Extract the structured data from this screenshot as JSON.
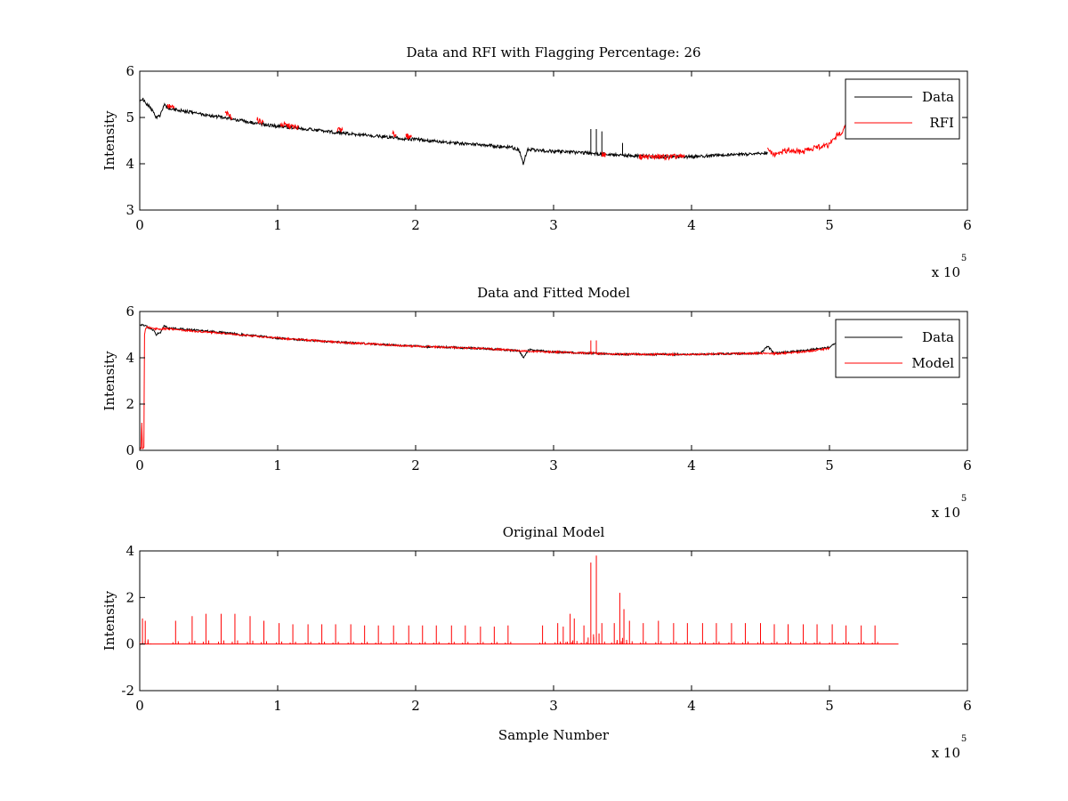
{
  "figure": {
    "background": "#ffffff"
  },
  "chart_data": [
    {
      "type": "line",
      "title": "Data and RFI with Flagging Percentage: 26",
      "xlabel": "",
      "ylabel": "Intensity",
      "xlim": [
        0,
        6
      ],
      "ylim": [
        3,
        6
      ],
      "xticks": [
        0,
        1,
        2,
        3,
        4,
        5,
        6
      ],
      "yticks": [
        3,
        4,
        5,
        6
      ],
      "x_multiplier": {
        "base": "x 10",
        "exponent": "5"
      },
      "grid": false,
      "legend": {
        "position": "top-right",
        "entries": [
          {
            "label": "Data",
            "color": "#000000"
          },
          {
            "label": "RFI",
            "color": "#ff0000"
          }
        ]
      },
      "series": [
        {
          "name": "Data",
          "color": "#000000",
          "x": [
            0,
            0.02,
            0.05,
            0.08,
            0.1,
            0.12,
            0.15,
            0.18,
            0.2,
            0.3,
            0.5,
            0.7,
            0.9,
            1.1,
            1.3,
            1.5,
            1.7,
            1.9,
            2.1,
            2.3,
            2.5,
            2.7,
            2.75,
            2.78,
            2.81,
            2.85,
            2.9,
            3.0,
            3.2,
            3.4,
            3.6,
            3.8,
            4.0,
            4.2,
            4.4,
            4.5,
            4.55
          ],
          "y": [
            5.35,
            5.4,
            5.3,
            5.2,
            5.1,
            5.0,
            5.05,
            5.3,
            5.2,
            5.15,
            5.05,
            4.95,
            4.85,
            4.78,
            4.72,
            4.65,
            4.6,
            4.55,
            4.5,
            4.45,
            4.4,
            4.35,
            4.3,
            4.0,
            4.3,
            4.3,
            4.28,
            4.27,
            4.24,
            4.2,
            4.17,
            4.15,
            4.15,
            4.18,
            4.2,
            4.22,
            4.25
          ],
          "spikes": [
            {
              "x": 3.27,
              "y": 4.75
            },
            {
              "x": 3.31,
              "y": 4.75
            },
            {
              "x": 3.35,
              "y": 4.7
            },
            {
              "x": 3.5,
              "y": 4.45
            }
          ]
        },
        {
          "name": "RFI",
          "color": "#ff0000",
          "segments": [
            {
              "x": [
                0.2,
                0.25
              ],
              "y": [
                5.25,
                5.2
              ]
            },
            {
              "x": [
                0.62,
                0.67
              ],
              "y": [
                5.1,
                5.0
              ]
            },
            {
              "x": [
                0.85,
                0.9
              ],
              "y": [
                4.95,
                4.9
              ]
            },
            {
              "x": [
                1.02,
                1.15
              ],
              "y": [
                4.85,
                4.78
              ]
            },
            {
              "x": [
                1.43,
                1.47
              ],
              "y": [
                4.75,
                4.72
              ]
            },
            {
              "x": [
                1.83,
                1.86
              ],
              "y": [
                4.65,
                4.62
              ]
            },
            {
              "x": [
                1.93,
                1.97
              ],
              "y": [
                4.6,
                4.58
              ]
            },
            {
              "x": [
                3.35,
                3.38
              ],
              "y": [
                4.2,
                4.2
              ]
            },
            {
              "x": [
                3.62,
                3.95
              ],
              "y": [
                4.15,
                4.15
              ]
            },
            {
              "x": [
                4.55,
                4.6,
                4.7,
                4.8,
                4.9,
                5.0,
                5.05,
                5.1,
                5.15
              ],
              "y": [
                4.3,
                4.2,
                4.3,
                4.25,
                4.35,
                4.4,
                4.6,
                4.7,
                5.0
              ]
            }
          ]
        }
      ]
    },
    {
      "type": "line",
      "title": "Data and Fitted Model",
      "xlabel": "",
      "ylabel": "Intensity",
      "xlim": [
        0,
        6
      ],
      "ylim": [
        0,
        6
      ],
      "xticks": [
        0,
        1,
        2,
        3,
        4,
        5,
        6
      ],
      "yticks": [
        0,
        2,
        4,
        6
      ],
      "x_multiplier": {
        "base": "x 10",
        "exponent": "5"
      },
      "grid": false,
      "legend": {
        "position": "top-right",
        "entries": [
          {
            "label": "Data",
            "color": "#000000"
          },
          {
            "label": "Model",
            "color": "#ff0000"
          }
        ]
      },
      "series": [
        {
          "name": "Data",
          "color": "#000000",
          "x": [
            0,
            0.02,
            0.05,
            0.1,
            0.12,
            0.15,
            0.18,
            0.2,
            0.5,
            1.0,
            1.5,
            2.0,
            2.5,
            2.75,
            2.78,
            2.82,
            3.0,
            3.5,
            4.0,
            4.5,
            4.55,
            4.6,
            4.8,
            5.0,
            5.05
          ],
          "y": [
            5.4,
            5.45,
            5.35,
            5.2,
            5.0,
            5.1,
            5.4,
            5.3,
            5.15,
            4.85,
            4.65,
            4.5,
            4.4,
            4.3,
            4.0,
            4.35,
            4.25,
            4.15,
            4.15,
            4.2,
            4.5,
            4.2,
            4.3,
            4.45,
            4.7
          ]
        },
        {
          "name": "Model",
          "color": "#ff0000",
          "x": [
            0,
            0.01,
            0.015,
            0.02,
            0.03,
            0.035,
            0.04,
            0.05,
            0.1,
            0.2,
            0.5,
            1.0,
            1.5,
            2.0,
            2.5,
            2.8,
            3.0,
            3.5,
            4.0,
            4.5,
            4.6,
            4.8,
            5.0
          ],
          "y": [
            0.1,
            0.1,
            1.2,
            0.1,
            0.1,
            5.0,
            5.2,
            5.35,
            5.25,
            5.25,
            5.1,
            4.85,
            4.65,
            4.5,
            4.4,
            4.28,
            4.25,
            4.15,
            4.15,
            4.2,
            4.18,
            4.25,
            4.4
          ],
          "spikes": [
            {
              "x": 3.27,
              "y": 4.75
            },
            {
              "x": 3.31,
              "y": 4.75
            }
          ]
        }
      ]
    },
    {
      "type": "line",
      "title": "Original Model",
      "xlabel": "Sample Number",
      "ylabel": "Intensity",
      "xlim": [
        0,
        6
      ],
      "ylim": [
        -2,
        4
      ],
      "xticks": [
        0,
        1,
        2,
        3,
        4,
        5,
        6
      ],
      "yticks": [
        -2,
        0,
        2,
        4
      ],
      "x_multiplier": {
        "base": "x 10",
        "exponent": "5"
      },
      "grid": false,
      "series": [
        {
          "color": "#ff0000",
          "baseline": {
            "x": [
              0,
              5.5
            ],
            "y": [
              0,
              0
            ]
          },
          "spikes": [
            {
              "x": 0.02,
              "y": 1.1
            },
            {
              "x": 0.04,
              "y": 1.0
            },
            {
              "x": 0.06,
              "y": 0.2
            },
            {
              "x": 0.26,
              "y": 1.0
            },
            {
              "x": 0.38,
              "y": 1.2
            },
            {
              "x": 0.48,
              "y": 1.3
            },
            {
              "x": 0.59,
              "y": 1.3
            },
            {
              "x": 0.69,
              "y": 1.3
            },
            {
              "x": 0.8,
              "y": 1.2
            },
            {
              "x": 0.9,
              "y": 1.0
            },
            {
              "x": 1.01,
              "y": 0.9
            },
            {
              "x": 1.11,
              "y": 0.85
            },
            {
              "x": 1.22,
              "y": 0.85
            },
            {
              "x": 1.32,
              "y": 0.85
            },
            {
              "x": 1.42,
              "y": 0.85
            },
            {
              "x": 1.53,
              "y": 0.85
            },
            {
              "x": 1.63,
              "y": 0.8
            },
            {
              "x": 1.73,
              "y": 0.8
            },
            {
              "x": 1.84,
              "y": 0.8
            },
            {
              "x": 1.95,
              "y": 0.8
            },
            {
              "x": 2.05,
              "y": 0.8
            },
            {
              "x": 2.15,
              "y": 0.8
            },
            {
              "x": 2.26,
              "y": 0.8
            },
            {
              "x": 2.36,
              "y": 0.8
            },
            {
              "x": 2.47,
              "y": 0.75
            },
            {
              "x": 2.57,
              "y": 0.75
            },
            {
              "x": 2.67,
              "y": 0.8
            },
            {
              "x": 2.92,
              "y": 0.8
            },
            {
              "x": 3.03,
              "y": 0.9
            },
            {
              "x": 3.07,
              "y": 0.75
            },
            {
              "x": 3.12,
              "y": 1.3
            },
            {
              "x": 3.15,
              "y": 1.1
            },
            {
              "x": 3.22,
              "y": 0.8
            },
            {
              "x": 3.27,
              "y": 3.5
            },
            {
              "x": 3.31,
              "y": 3.8
            },
            {
              "x": 3.35,
              "y": 0.9
            },
            {
              "x": 3.44,
              "y": 0.9
            },
            {
              "x": 3.48,
              "y": 2.2
            },
            {
              "x": 3.51,
              "y": 1.5
            },
            {
              "x": 3.55,
              "y": 1.0
            },
            {
              "x": 3.65,
              "y": 0.9
            },
            {
              "x": 3.76,
              "y": 1.0
            },
            {
              "x": 3.87,
              "y": 0.9
            },
            {
              "x": 3.97,
              "y": 0.9
            },
            {
              "x": 4.08,
              "y": 0.9
            },
            {
              "x": 4.18,
              "y": 0.9
            },
            {
              "x": 4.29,
              "y": 0.9
            },
            {
              "x": 4.39,
              "y": 0.9
            },
            {
              "x": 4.5,
              "y": 0.9
            },
            {
              "x": 4.6,
              "y": 0.85
            },
            {
              "x": 4.7,
              "y": 0.85
            },
            {
              "x": 4.81,
              "y": 0.85
            },
            {
              "x": 4.91,
              "y": 0.85
            },
            {
              "x": 5.02,
              "y": 0.85
            },
            {
              "x": 5.12,
              "y": 0.8
            },
            {
              "x": 5.23,
              "y": 0.8
            },
            {
              "x": 5.33,
              "y": 0.8
            }
          ]
        }
      ]
    }
  ]
}
